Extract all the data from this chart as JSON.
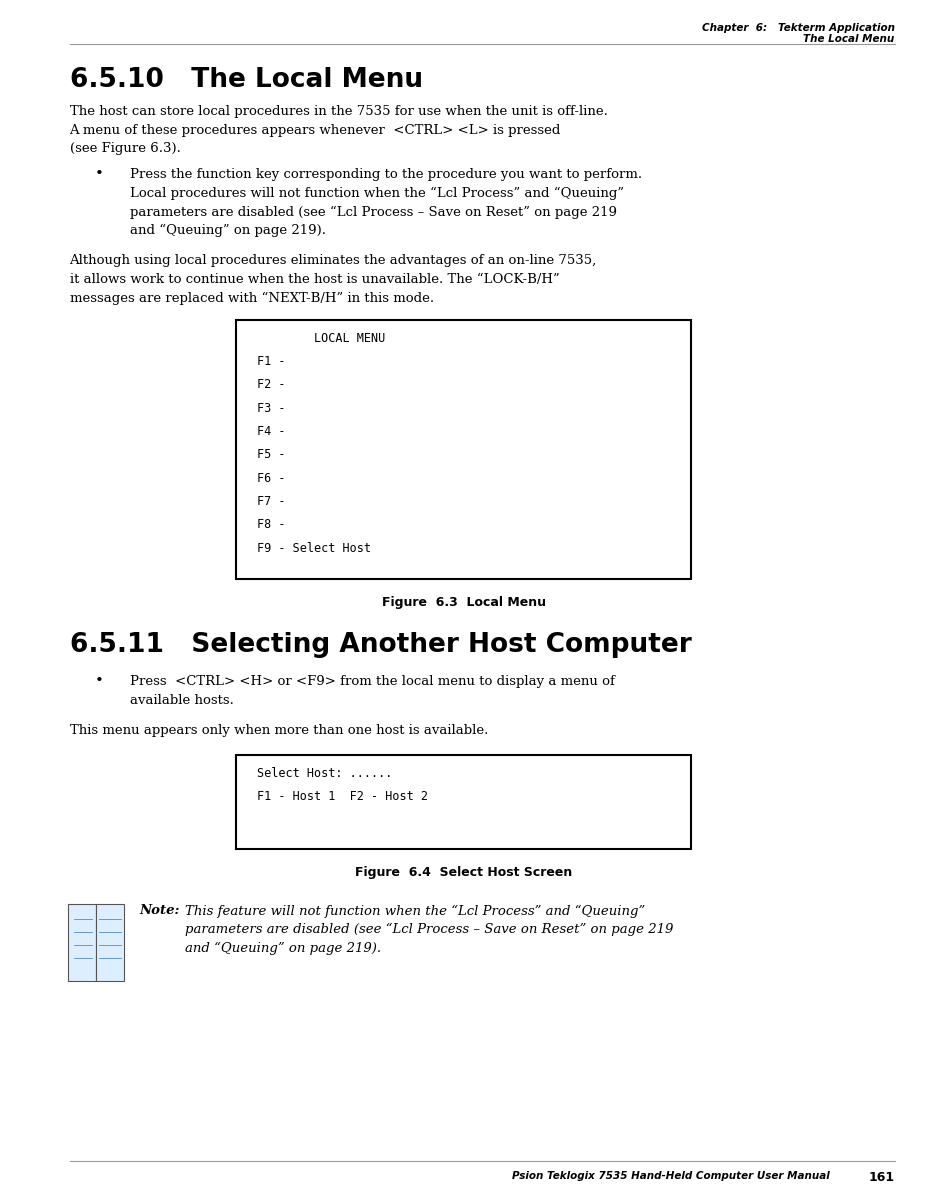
{
  "page_bg": "#ffffff",
  "header_line1": "Chapter  6:   Tekterm Application",
  "header_line2": "The Local Menu",
  "footer_text": "Psion Teklogix 7535 Hand-Held Computer User Manual",
  "footer_page": "161",
  "section_title_1": "6.5.10   The Local Menu",
  "section_title_2": "6.5.11   Selecting Another Host Computer",
  "body_text_1": [
    "The host can store local procedures in the 7535 for use when the unit is off-line.",
    "A menu of these procedures appears whenever  <CTRL> <L> is pressed",
    "(see Figure 6.3)."
  ],
  "bullet_1_lines": [
    "Press the function key corresponding to the procedure you want to perform.",
    "Local procedures will not function when the “Lcl Process” and “Queuing”",
    "parameters are disabled (see “Lcl Process – Save on Reset” on page 219",
    "and “Queuing” on page 219)."
  ],
  "body_text_2": [
    "Although using local procedures eliminates the advantages of an on-line 7535,",
    "it allows work to continue when the host is unavailable. The “LOCK-B/H”",
    "messages are replaced with “NEXT-B/H” in this mode."
  ],
  "local_menu_lines": [
    "        LOCAL MENU",
    "F1 -",
    "F2 -",
    "F3 -",
    "F4 -",
    "F5 -",
    "F6 -",
    "F7 -",
    "F8 -",
    "F9 - Select Host"
  ],
  "fig_caption_1": "Figure  6.3  Local Menu",
  "bullet_2_lines": [
    "Press  <CTRL> <H> or <F9> from the local menu to display a menu of",
    "available hosts."
  ],
  "body_text_3": "This menu appears only when more than one host is available.",
  "select_host_lines": [
    "Select Host: ......",
    "F1 - Host 1  F2 - Host 2"
  ],
  "fig_caption_2": "Figure  6.4  Select Host Screen",
  "note_label": "Note:",
  "note_text_lines": [
    "This feature will not function when the “Lcl Process” and “Queuing”",
    "parameters are disabled (see “Lcl Process – Save on Reset” on page 219",
    "and “Queuing” on page 219)."
  ],
  "lm": 0.075,
  "rm": 0.965,
  "text_color": "#000000",
  "header_color": "#000000",
  "mono_box_bg": "#ffffff",
  "mono_box_border": "#000000"
}
